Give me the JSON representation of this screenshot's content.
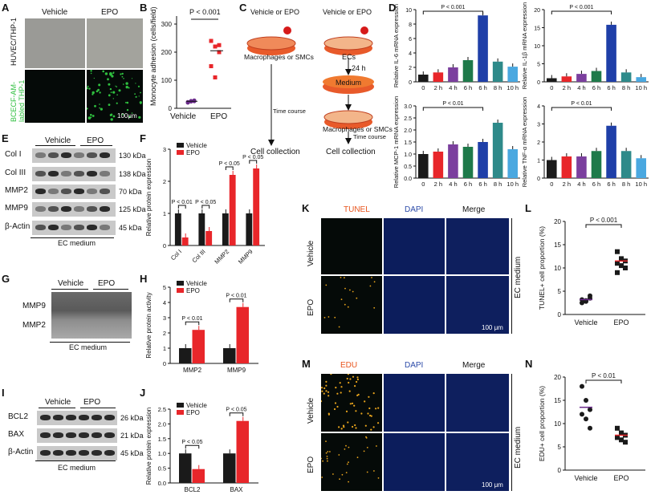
{
  "labels": {
    "A": "A",
    "B": "B",
    "C": "C",
    "D": "D",
    "E": "E",
    "F": "F",
    "G": "G",
    "H": "H",
    "I": "I",
    "J": "J",
    "K": "K",
    "L": "L",
    "M": "M",
    "N": "N"
  },
  "panelA": {
    "col1": "Vehicle",
    "col2": "EPO",
    "row1": "HUVEC/THP-1",
    "row2": "BCECF-AM-labled THP-1",
    "scale": "100μm"
  },
  "panelB": {
    "ylabel": "Monocyte adhesion (cells/field)",
    "p": "P < 0.001",
    "x1": "Vehicle",
    "x2": "EPO",
    "yticks": [
      "0",
      "100",
      "200",
      "300"
    ]
  },
  "panelC": {
    "top1": "Vehicle or EPO",
    "top2": "Vehicle or EPO",
    "dish1": "Macrophages or SMCs",
    "dish2": "ECs",
    "hours": "24 h",
    "medium": "Medium",
    "time1": "Time course",
    "time2": "Time course",
    "dish3": "Macrophages or SMCs",
    "collect1": "Cell collection",
    "collect2": "Cell collection"
  },
  "panelD": {
    "charts": [
      {
        "gene": "IL-6",
        "ylabel": "Relative IL-6 mRNA expression",
        "p": "P < 0.001",
        "yticks": [
          "0",
          "2",
          "4",
          "6",
          "8",
          "10"
        ],
        "ymax": 10,
        "values": [
          1.0,
          1.3,
          2.0,
          3.0,
          9.2,
          2.8,
          2.1
        ]
      },
      {
        "gene": "IL-1β",
        "ylabel": "Relative IL-1β mRNA expression",
        "p": "P < 0.001",
        "yticks": [
          "0",
          "5",
          "10",
          "15",
          "20"
        ],
        "ymax": 20,
        "values": [
          1.0,
          1.5,
          2.2,
          3.0,
          15.8,
          2.6,
          1.3
        ]
      },
      {
        "gene": "MCP-1",
        "ylabel": "Relative MCP-1 mRNA expression",
        "p": "P < 0.01",
        "yticks": [
          "0.0",
          "0.5",
          "1.0",
          "1.5",
          "2.0",
          "2.5",
          "3.0"
        ],
        "ymax": 3.0,
        "values": [
          1.0,
          1.1,
          1.4,
          1.3,
          1.5,
          2.3,
          1.2
        ]
      },
      {
        "gene": "TNF-α",
        "ylabel": "Relative TNF-α mRNA expression",
        "p": "P < 0.01",
        "yticks": [
          "0",
          "1",
          "2",
          "3",
          "4"
        ],
        "ymax": 4,
        "values": [
          1.0,
          1.2,
          1.2,
          1.5,
          2.9,
          1.5,
          1.1
        ]
      }
    ],
    "xticks": [
      "0",
      "2 h",
      "4 h",
      "6 h",
      "6 h",
      "8 h",
      "10 h"
    ],
    "colors": [
      "#1a1a1a",
      "#e8262a",
      "#7b3f9e",
      "#1e7a4a",
      "#1f3fa8",
      "#2e8a8a",
      "#4aa8e0"
    ]
  },
  "panelE": {
    "vehicle": "Vehicle",
    "epo": "EPO",
    "rows": [
      "Col I",
      "Col III",
      "MMP2",
      "MMP9",
      "β-Actin"
    ],
    "kda": [
      "130 kDa",
      "138 kDa",
      "70 kDa",
      "125 kDa",
      "45 kDa"
    ],
    "footer": "EC medium"
  },
  "panelF": {
    "ylabel": "Relative protein expression",
    "legend": [
      "Vehicle",
      "EPO"
    ],
    "categories": [
      "Col I",
      "Col III",
      "MMP2",
      "MMP9"
    ],
    "vehicle": [
      1.0,
      1.0,
      1.0,
      1.0
    ],
    "epo": [
      0.25,
      0.45,
      2.2,
      2.4
    ],
    "p": [
      "P < 0.01",
      "P < 0.05",
      "P < 0.05",
      "P < 0.05"
    ],
    "yticks": [
      "0",
      "1",
      "2",
      "3"
    ],
    "ymax": 3
  },
  "panelG": {
    "vehicle": "Vehicle",
    "epo": "EPO",
    "rows": [
      "MMP9",
      "MMP2"
    ],
    "footer": "EC medium"
  },
  "panelH": {
    "ylabel": "Relative protein activity",
    "legend": [
      "Vehicle",
      "EPO"
    ],
    "categories": [
      "MMP2",
      "MMP9"
    ],
    "vehicle": [
      1.0,
      1.0
    ],
    "epo": [
      2.2,
      3.7
    ],
    "p": [
      "P < 0.01",
      "P < 0.01"
    ],
    "yticks": [
      "0",
      "1",
      "2",
      "3",
      "4",
      "5"
    ],
    "ymax": 5
  },
  "panelI": {
    "vehicle": "Vehicle",
    "epo": "EPO",
    "rows": [
      "BCL2",
      "BAX",
      "β-Actin"
    ],
    "kda": [
      "26 kDa",
      "21 kDa",
      "45 kDa"
    ],
    "footer": "EC medium"
  },
  "panelJ": {
    "ylabel": "Relative protein expression",
    "legend": [
      "Vehicle",
      "EPO"
    ],
    "categories": [
      "BCL2",
      "BAX"
    ],
    "vehicle": [
      1.0,
      1.0
    ],
    "epo": [
      0.47,
      2.1
    ],
    "p": [
      "P < 0.05",
      "P < 0.05"
    ],
    "yticks": [
      "0.0",
      "0.5",
      "1.0",
      "1.5",
      "2.0",
      "2.5"
    ],
    "ymax": 2.5
  },
  "panelK": {
    "c1": "TUNEL",
    "c2": "DAPI",
    "c3": "Merge",
    "r1": "Vehicle",
    "r2": "EPO",
    "side": "EC medium",
    "scale": "100 μm"
  },
  "panelL": {
    "ylabel": "TUNEL+ cell proportion (%)",
    "p": "P < 0.001",
    "x1": "Vehicle",
    "x2": "EPO",
    "yticks": [
      "0",
      "5",
      "10",
      "15",
      "20"
    ]
  },
  "panelM": {
    "c1": "EDU",
    "c2": "DAPI",
    "c3": "Merge",
    "r1": "Vehicle",
    "r2": "EPO",
    "side": "EC medium",
    "scale": "100 μm"
  },
  "panelN": {
    "ylabel": "EDU+ cell proportion (%)",
    "p": "P < 0.01",
    "x1": "Vehicle",
    "x2": "EPO",
    "yticks": [
      "0",
      "5",
      "10",
      "15",
      "20"
    ]
  },
  "colors": {
    "vehicle": "#1a1a1a",
    "epo": "#e8262a",
    "tunel": "#e8541c",
    "dapi": "#2b4aa8",
    "edu": "#e8541c",
    "green": "#2fbf3f",
    "purple": "#6a2a8a"
  }
}
